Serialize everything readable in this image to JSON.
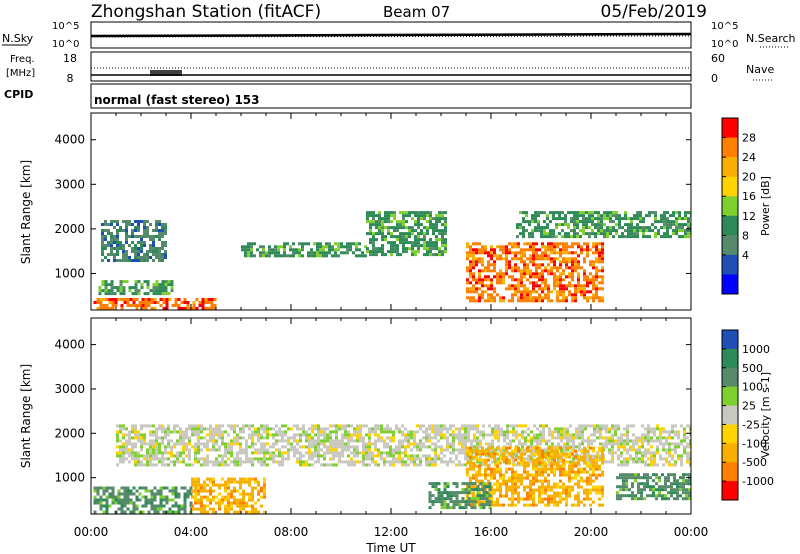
{
  "header": {
    "station": "Zhongshan Station (fitACF)",
    "beam": "Beam 07",
    "date": "05/Feb/2019"
  },
  "noise_panel": {
    "left_label": "N.Sky",
    "right_label": "N.Search",
    "left_ticks": [
      "10^5",
      "10^0"
    ],
    "right_ticks": [
      "10^5",
      "10^0"
    ]
  },
  "freq_panel": {
    "left_label_1": "Freq.",
    "left_label_2": "[MHz]",
    "left_ticks": [
      "18",
      "8"
    ],
    "right_label": "Nave",
    "right_ticks": [
      "60",
      "0"
    ]
  },
  "cpid_panel": {
    "label": "CPID",
    "text": "normal (fast stereo) 153"
  },
  "colors": {
    "red": "#ff0000",
    "orange": "#ff7f00",
    "dark_orange": "#ff8c00",
    "yellow_orange": "#f7b000",
    "yellow": "#ffd200",
    "green": "#7fd02e",
    "sea_green": "#2e8b57",
    "grey_green": "#558a6a",
    "blue": "#1f4fb5",
    "bright_blue": "#0000ff",
    "grey": "#c8c8c0",
    "black": "#000000"
  },
  "chart_data": [
    {
      "type": "heatmap",
      "title": "Power",
      "ylabel": "Slant Range [km]",
      "xlabel": "",
      "ylim": [
        180,
        4600
      ],
      "yticks": [
        "4000",
        "3000",
        "2000",
        "1000"
      ],
      "colorbar": {
        "label": "Power [dB]",
        "ticks": [
          "28",
          "24",
          "20",
          "16",
          "12",
          "8",
          "4"
        ],
        "colors": [
          "#ff0000",
          "#ff7f00",
          "#f7b000",
          "#ffd200",
          "#7fd02e",
          "#2e8b57",
          "#558a6a",
          "#1f4fb5",
          "#0000ff"
        ]
      },
      "features": [
        {
          "t0": 0.1,
          "t1": 5.0,
          "r0": 200,
          "r1": 450,
          "value": 24
        },
        {
          "t0": 0.3,
          "t1": 3.2,
          "r0": 550,
          "r1": 850,
          "value": 10
        },
        {
          "t0": 0.4,
          "t1": 3.0,
          "r0": 1300,
          "r1": 2200,
          "value": 7
        },
        {
          "t0": 6.0,
          "t1": 11.0,
          "r0": 1400,
          "r1": 1700,
          "value": 8
        },
        {
          "t0": 11.0,
          "t1": 14.2,
          "r0": 1400,
          "r1": 2400,
          "value": 9
        },
        {
          "t0": 15.0,
          "t1": 20.5,
          "r0": 400,
          "r1": 1700,
          "value": 26
        },
        {
          "t0": 17.0,
          "t1": 24.0,
          "r0": 1800,
          "r1": 2400,
          "value": 8
        }
      ]
    },
    {
      "type": "heatmap",
      "title": "Velocity",
      "ylabel": "Slant Range [km]",
      "xlabel": "Time UT",
      "ylim": [
        180,
        4600
      ],
      "yticks": [
        "4000",
        "3000",
        "2000",
        "1000"
      ],
      "xticks": [
        "00:00",
        "04:00",
        "08:00",
        "12:00",
        "16:00",
        "20:00",
        "00:00"
      ],
      "colorbar": {
        "label": "Velocity [m s-1]",
        "ticks": [
          "1000",
          "500",
          "100",
          "25",
          "-25",
          "-100",
          "-500",
          "-1000"
        ],
        "colors": [
          "#1f4fb5",
          "#2e8b57",
          "#558a6a",
          "#7fd02e",
          "#c8c8c0",
          "#ffd200",
          "#f7b000",
          "#ff7f00",
          "#ff0000"
        ]
      },
      "features": [
        {
          "t0": 0.1,
          "t1": 4.0,
          "r0": 200,
          "r1": 800,
          "value": 300
        },
        {
          "t0": 4.0,
          "t1": 7.0,
          "r0": 200,
          "r1": 1000,
          "value": -200
        },
        {
          "t0": 1.0,
          "t1": 24.0,
          "r0": 1300,
          "r1": 2200,
          "value": 0
        },
        {
          "t0": 15.0,
          "t1": 20.5,
          "r0": 400,
          "r1": 1700,
          "value": -300
        },
        {
          "t0": 13.5,
          "t1": 16.0,
          "r0": 300,
          "r1": 900,
          "value": 200
        },
        {
          "t0": 21.0,
          "t1": 24.0,
          "r0": 500,
          "r1": 1100,
          "value": 150
        }
      ]
    }
  ]
}
